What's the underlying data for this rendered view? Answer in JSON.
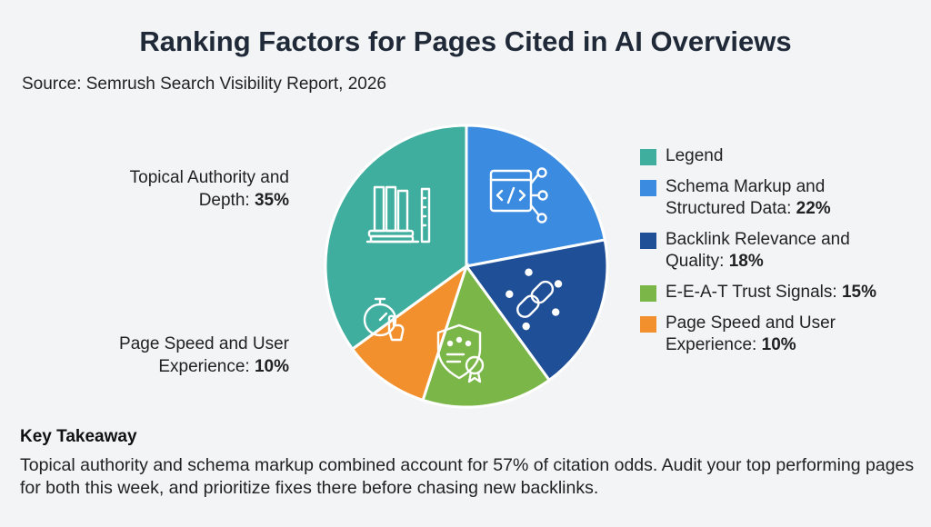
{
  "chart_data": {
    "type": "pie",
    "title": "Ranking Factors for Pages Cited in AI Overviews",
    "subtitle": "Source: Semrush Search Visibility Report, 2026",
    "slices": [
      {
        "name": "Topical Authority and Depth",
        "value": 35,
        "color": "#3fae9e",
        "icon": "books-ruler-icon"
      },
      {
        "name": "Schema Markup and Structured Data",
        "value": 22,
        "color": "#3b8be0",
        "icon": "code-window-icon"
      },
      {
        "name": "Backlink Relevance and Quality",
        "value": 18,
        "color": "#1e4f97",
        "icon": "chain-link-stars-icon"
      },
      {
        "name": "E-E-A-T Trust Signals",
        "value": 15,
        "color": "#7ab648",
        "icon": "shield-stars-badge-icon"
      },
      {
        "name": "Page Speed and User Experience",
        "value": 10,
        "color": "#f2902d",
        "icon": "stopwatch-pointer-icon"
      }
    ],
    "callouts": [
      {
        "line1": "Topical Authority and",
        "line2": "Depth: ",
        "pct": "35%"
      },
      {
        "line1": "Page Speed and User",
        "line2": "Experience: ",
        "pct": "10%"
      }
    ],
    "legend": {
      "heading": "Legend",
      "heading_color": "#3fae9e",
      "placement": "right",
      "items": [
        {
          "line1": "Schema Markup and",
          "line2": "Structured Data: ",
          "pct": "22%",
          "color": "#3b8be0"
        },
        {
          "line1": "Backlink Relevance and",
          "line2": "Quality: ",
          "pct": "18%",
          "color": "#1e4f97"
        },
        {
          "line1": "E-E-A-T Trust Signals: ",
          "line2": "",
          "pct": "15%",
          "color": "#7ab648"
        },
        {
          "line1": "Page Speed and User",
          "line2": "Experience: ",
          "pct": "10%",
          "color": "#f2902d"
        }
      ]
    }
  },
  "takeaway": {
    "heading": "Key Takeaway",
    "body": "Topical authority and schema markup combined account for 57% of citation odds. Audit your top performing pages for both this week, and prioritize fixes there before chasing new backlinks."
  }
}
